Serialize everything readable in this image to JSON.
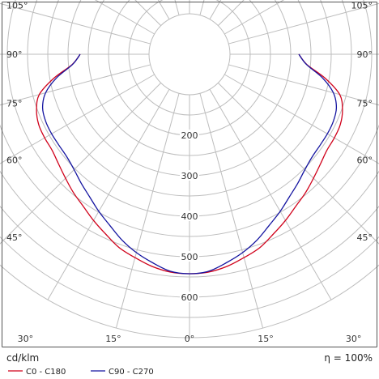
{
  "chart_data": {
    "type": "polar",
    "unit_label": "cd/klm",
    "efficiency_label": "η = 100%",
    "angle_labels": [
      "0°",
      "15°",
      "30°",
      "45°",
      "60°",
      "75°",
      "90°",
      "105°"
    ],
    "radial_ticks": [
      200,
      300,
      400,
      500,
      600
    ],
    "radial_tick_labels": [
      "200",
      "300",
      "400",
      "500",
      "600"
    ],
    "r_max": 700,
    "angle_step_deg": 15,
    "series": [
      {
        "name": "C0 - C180",
        "color": "#d0021b",
        "angles_deg": [
          0,
          5,
          10,
          15,
          20,
          25,
          30,
          35,
          40,
          45,
          50,
          55,
          60,
          65,
          70,
          75,
          80,
          85,
          90
        ],
        "values": [
          542,
          540,
          532,
          520,
          508,
          490,
          474,
          458,
          446,
          433,
          422,
          414,
          413,
          411,
          402,
          384,
          340,
          291,
          270
        ]
      },
      {
        "name": "C90 - C270",
        "color": "#1414a0",
        "angles_deg": [
          0,
          5,
          10,
          15,
          20,
          25,
          30,
          35,
          40,
          45,
          50,
          55,
          60,
          65,
          70,
          75,
          80,
          85,
          90
        ],
        "values": [
          542,
          538,
          523,
          507,
          488,
          466,
          448,
          430,
          416,
          403,
          395,
          393,
          393,
          392,
          386,
          368,
          333,
          290,
          270
        ]
      }
    ]
  }
}
